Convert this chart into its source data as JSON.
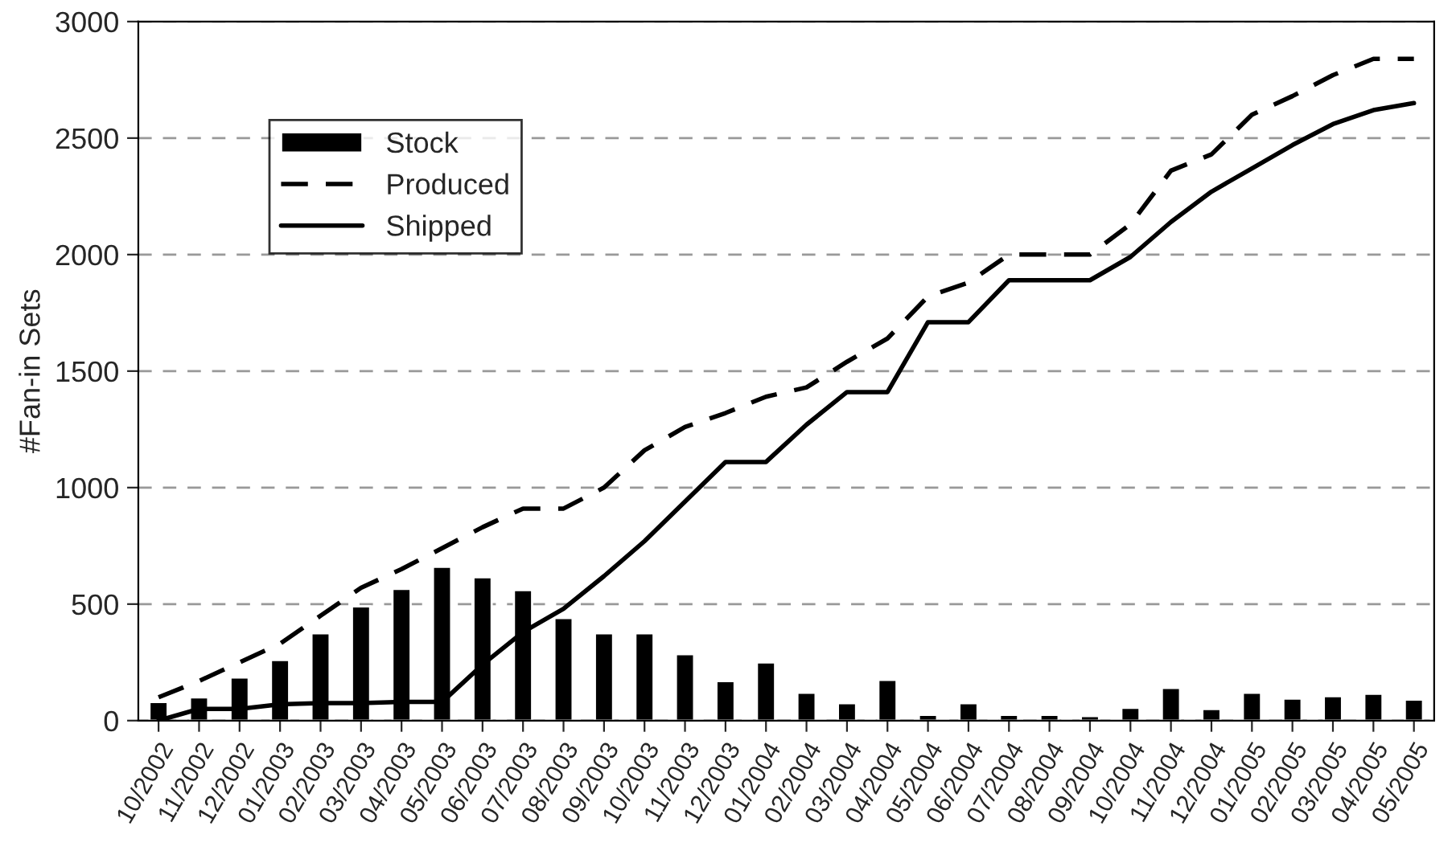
{
  "chart_data": {
    "type": "bar",
    "ylabel": "#Fan-in Sets",
    "categories": [
      "10/2002",
      "11/2002",
      "12/2002",
      "01/2003",
      "02/2003",
      "03/2003",
      "04/2003",
      "05/2003",
      "06/2003",
      "07/2003",
      "08/2003",
      "09/2003",
      "10/2003",
      "11/2003",
      "12/2003",
      "01/2004",
      "02/2004",
      "03/2004",
      "04/2004",
      "05/2004",
      "06/2004",
      "07/2004",
      "08/2004",
      "09/2004",
      "10/2004",
      "11/2004",
      "12/2004",
      "01/2005",
      "02/2005",
      "03/2005",
      "04/2005",
      "05/2005"
    ],
    "series": [
      {
        "name": "Stock",
        "color": "#000000",
        "values": [
          80,
          100,
          185,
          260,
          375,
          490,
          565,
          660,
          615,
          560,
          440,
          375,
          375,
          285,
          170,
          250,
          120,
          75,
          175,
          25,
          75,
          25,
          25,
          20,
          55,
          140,
          50,
          120,
          95,
          105,
          115,
          90
        ]
      },
      {
        "name": "Produced",
        "type": "line",
        "line_style": "dashed",
        "color": "#000000",
        "values": [
          100,
          170,
          250,
          330,
          450,
          570,
          650,
          740,
          830,
          910,
          910,
          1000,
          1160,
          1260,
          1320,
          1390,
          1430,
          1540,
          1640,
          1820,
          1880,
          2000,
          2000,
          2000,
          2130,
          2360,
          2430,
          2600,
          2680,
          2770,
          2840,
          2840
        ]
      },
      {
        "name": "Shipped",
        "type": "line",
        "line_style": "solid",
        "color": "#000000",
        "values": [
          0,
          50,
          50,
          70,
          75,
          75,
          80,
          80,
          240,
          380,
          480,
          620,
          770,
          940,
          1110,
          1110,
          1270,
          1410,
          1410,
          1710,
          1710,
          1890,
          1890,
          1890,
          1990,
          2140,
          2270,
          2370,
          2470,
          2560,
          2620,
          2650
        ]
      }
    ],
    "ylim": [
      0,
      3000
    ],
    "yticks": [
      0,
      500,
      1000,
      1500,
      2000,
      2500,
      3000
    ],
    "grid": "y",
    "legend": "top left"
  }
}
